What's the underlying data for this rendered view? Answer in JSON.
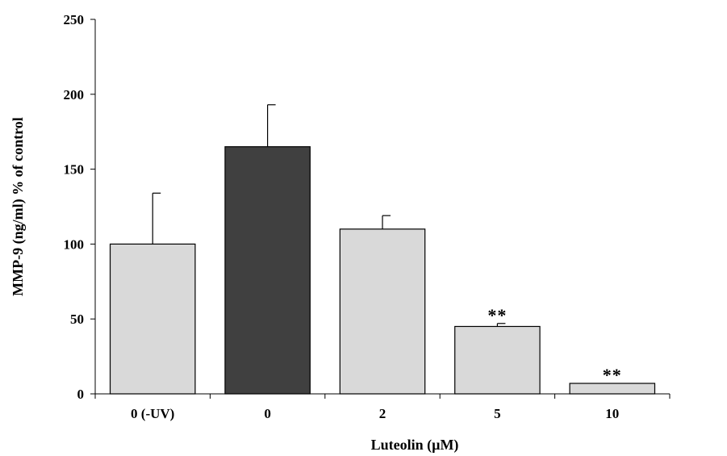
{
  "chart_data": {
    "type": "bar",
    "title": "",
    "xlabel": "Luteolin (µM)",
    "ylabel": "MMP-9 (ng/ml) % of control",
    "ylim": [
      0,
      250
    ],
    "yticks": [
      0,
      50,
      100,
      150,
      200,
      250
    ],
    "categories": [
      "0 (-UV)",
      "0",
      "2",
      "5",
      "10"
    ],
    "values": [
      100,
      165,
      110,
      45,
      7
    ],
    "errors": [
      34,
      28,
      9,
      2,
      0
    ],
    "annotations": [
      "",
      "",
      "",
      "**",
      "**"
    ],
    "bar_colors": [
      "#d9d9d9",
      "#404040",
      "#d9d9d9",
      "#d9d9d9",
      "#d9d9d9"
    ],
    "grid": false,
    "legend": "none"
  }
}
